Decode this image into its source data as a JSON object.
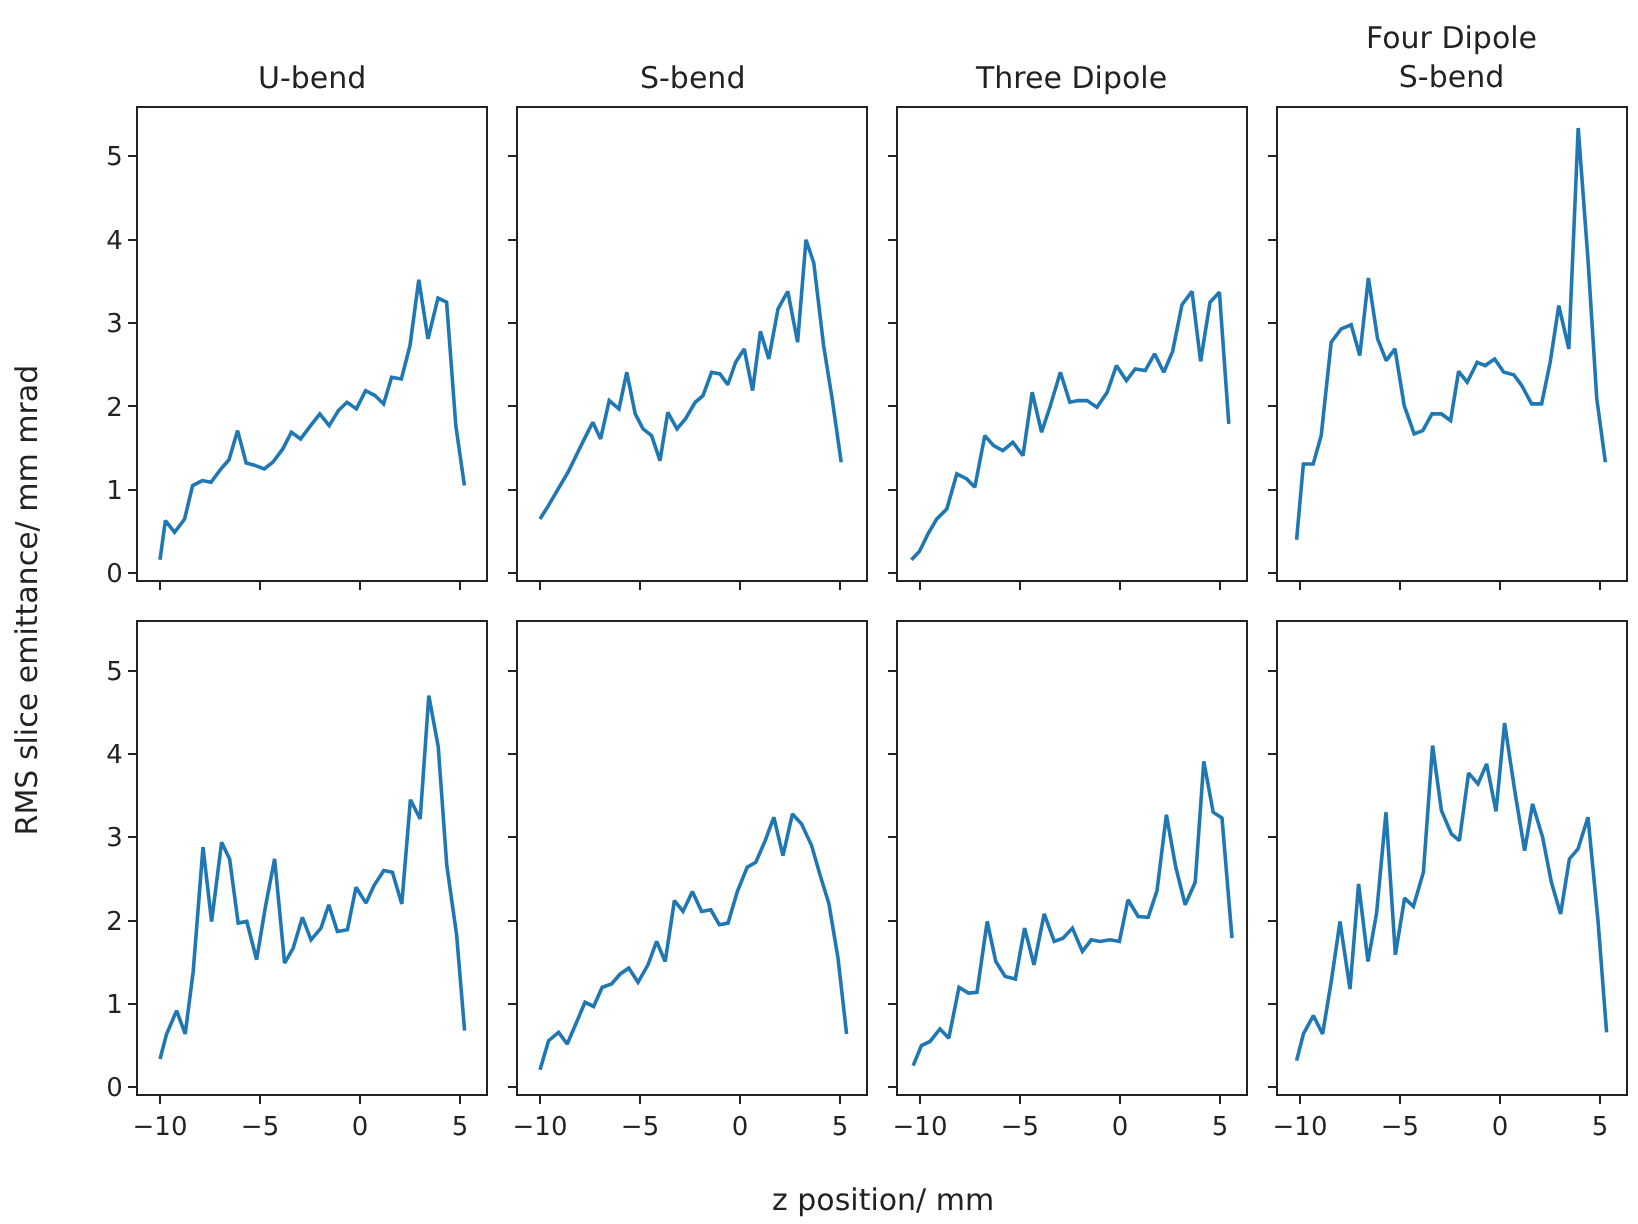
{
  "chart_data": [
    {
      "type": "line",
      "title": "U-bend",
      "ylabel": "RMS slice emittance/ mm mrad",
      "xlim": [
        -11.1,
        6.3
      ],
      "ylim": [
        -0.08,
        5.58
      ],
      "xticks": [
        -10,
        -5,
        0,
        5
      ],
      "yticks": [
        0,
        1,
        2,
        3,
        4,
        5
      ],
      "tick_labels": "y",
      "grid": false,
      "series": [
        {
          "color": "#1f77b4",
          "x": [
            -10,
            -9.73,
            -9.27,
            -8.77,
            -8.37,
            -7.88,
            -7.45,
            -6.95,
            -6.55,
            -6.12,
            -5.69,
            -5.22,
            -4.79,
            -4.36,
            -3.86,
            -3.43,
            -2.97,
            -2.47,
            -2.01,
            -1.54,
            -1.08,
            -0.65,
            -0.18,
            0.28,
            0.75,
            1.18,
            1.58,
            2.07,
            2.5,
            2.94,
            3.4,
            3.9,
            4.33,
            4.79,
            5.22
          ],
          "values": [
            0.16,
            0.63,
            0.49,
            0.65,
            1.05,
            1.11,
            1.09,
            1.25,
            1.36,
            1.71,
            1.32,
            1.29,
            1.25,
            1.33,
            1.49,
            1.69,
            1.61,
            1.77,
            1.91,
            1.77,
            1.95,
            2.05,
            1.97,
            2.19,
            2.13,
            2.03,
            2.35,
            2.33,
            2.73,
            3.52,
            2.81,
            3.3,
            3.25,
            1.77,
            1.05
          ]
        }
      ]
    },
    {
      "type": "line",
      "title": "S-bend",
      "xlim": [
        -11.1,
        6.3
      ],
      "ylim": [
        -0.08,
        5.58
      ],
      "xticks": [
        -10,
        -5,
        0,
        5
      ],
      "yticks": [
        0,
        1,
        2,
        3,
        4,
        5
      ],
      "tick_labels": false,
      "grid": false,
      "series": [
        {
          "color": "#1f77b4",
          "x": [
            -10,
            -9.58,
            -9.09,
            -8.6,
            -8.11,
            -7.78,
            -7.36,
            -6.97,
            -6.54,
            -6.05,
            -5.66,
            -5.24,
            -4.85,
            -4.42,
            -4.0,
            -3.61,
            -3.15,
            -2.73,
            -2.24,
            -1.85,
            -1.42,
            -1.0,
            -0.61,
            -0.22,
            0.21,
            0.63,
            1.02,
            1.44,
            1.9,
            2.39,
            2.88,
            3.3,
            3.69,
            4.18,
            4.61,
            5.06
          ],
          "values": [
            0.65,
            0.81,
            1.01,
            1.21,
            1.45,
            1.61,
            1.81,
            1.61,
            2.07,
            1.97,
            2.41,
            1.91,
            1.73,
            1.65,
            1.35,
            1.93,
            1.73,
            1.85,
            2.05,
            2.13,
            2.41,
            2.39,
            2.26,
            2.53,
            2.69,
            2.19,
            2.9,
            2.57,
            3.17,
            3.38,
            2.77,
            4.0,
            3.72,
            2.73,
            2.09,
            1.33
          ]
        }
      ]
    },
    {
      "type": "line",
      "title": "Three Dipole",
      "xlim": [
        -11.1,
        6.3
      ],
      "ylim": [
        -0.08,
        5.58
      ],
      "xticks": [
        -10,
        -5,
        0,
        5
      ],
      "yticks": [
        0,
        1,
        2,
        3,
        4,
        5
      ],
      "tick_labels": false,
      "grid": false,
      "series": [
        {
          "color": "#1f77b4",
          "x": [
            -10.43,
            -10.03,
            -9.6,
            -9.16,
            -8.66,
            -8.16,
            -7.66,
            -7.26,
            -6.76,
            -6.32,
            -5.86,
            -5.36,
            -4.85,
            -4.39,
            -3.92,
            -3.48,
            -2.98,
            -2.51,
            -2.08,
            -1.65,
            -1.15,
            -0.64,
            -0.18,
            0.32,
            0.76,
            1.26,
            1.73,
            2.19,
            2.63,
            3.1,
            3.6,
            4.03,
            4.5,
            4.97,
            5.44
          ],
          "values": [
            0.16,
            0.26,
            0.47,
            0.65,
            0.77,
            1.19,
            1.13,
            1.03,
            1.65,
            1.53,
            1.47,
            1.57,
            1.41,
            2.17,
            1.69,
            2.01,
            2.41,
            2.05,
            2.07,
            2.07,
            1.99,
            2.17,
            2.49,
            2.31,
            2.45,
            2.43,
            2.63,
            2.41,
            2.66,
            3.22,
            3.38,
            2.54,
            3.25,
            3.37,
            1.79
          ]
        }
      ]
    },
    {
      "type": "line",
      "title": "Four Dipole\nS-bend",
      "xlim": [
        -11.1,
        6.3
      ],
      "ylim": [
        -0.08,
        5.58
      ],
      "xticks": [
        -10,
        -5,
        0,
        5
      ],
      "yticks": [
        0,
        1,
        2,
        3,
        4,
        5
      ],
      "tick_labels": false,
      "grid": false,
      "series": [
        {
          "color": "#1f77b4",
          "x": [
            -10.17,
            -9.83,
            -9.34,
            -8.94,
            -8.44,
            -7.94,
            -7.44,
            -7.01,
            -6.58,
            -6.12,
            -5.69,
            -5.25,
            -4.79,
            -4.29,
            -3.86,
            -3.4,
            -2.93,
            -2.47,
            -2.07,
            -1.64,
            -1.14,
            -0.74,
            -0.27,
            0.19,
            0.69,
            1.09,
            1.58,
            2.08,
            2.51,
            2.94,
            3.44,
            3.91,
            4.4,
            4.84,
            5.27
          ],
          "values": [
            0.4,
            1.31,
            1.31,
            1.65,
            2.77,
            2.93,
            2.98,
            2.61,
            3.54,
            2.81,
            2.55,
            2.69,
            2.01,
            1.67,
            1.71,
            1.91,
            1.91,
            1.83,
            2.42,
            2.29,
            2.53,
            2.49,
            2.57,
            2.41,
            2.38,
            2.25,
            2.03,
            2.03,
            2.53,
            3.21,
            2.69,
            5.34,
            3.76,
            2.09,
            1.33
          ]
        }
      ]
    },
    {
      "type": "line",
      "xlim": [
        -11.1,
        6.3
      ],
      "ylim": [
        -0.08,
        5.58
      ],
      "xticks": [
        -10,
        -5,
        0,
        5
      ],
      "yticks": [
        0,
        1,
        2,
        3,
        4,
        5
      ],
      "grid": false,
      "series": [
        {
          "color": "#1f77b4",
          "x": [
            -10,
            -9.67,
            -9.17,
            -8.74,
            -8.34,
            -7.85,
            -7.42,
            -6.92,
            -6.52,
            -6.09,
            -5.66,
            -5.17,
            -4.74,
            -4.27,
            -3.77,
            -3.34,
            -2.88,
            -2.45,
            -1.95,
            -1.56,
            -1.13,
            -0.63,
            -0.2,
            0.3,
            0.7,
            1.19,
            1.62,
            2.09,
            2.52,
            3.01,
            3.44,
            3.91,
            4.34,
            4.83,
            5.23
          ],
          "values": [
            0.34,
            0.64,
            0.92,
            0.64,
            1.39,
            2.88,
            1.99,
            2.94,
            2.74,
            1.97,
            1.99,
            1.53,
            2.15,
            2.74,
            1.49,
            1.67,
            2.04,
            1.77,
            1.91,
            2.19,
            1.87,
            1.89,
            2.4,
            2.21,
            2.42,
            2.6,
            2.58,
            2.2,
            3.45,
            3.22,
            4.7,
            4.09,
            2.66,
            1.83,
            0.68
          ]
        }
      ]
    },
    {
      "type": "line",
      "xlabel": "z position/ mm",
      "xlim": [
        -11.1,
        6.3
      ],
      "ylim": [
        -0.08,
        5.58
      ],
      "xticks": [
        -10,
        -5,
        0,
        5
      ],
      "yticks": [
        0,
        1,
        2,
        3,
        4,
        5
      ],
      "tick_labels": "x",
      "grid": false,
      "series": [
        {
          "color": "#1f77b4",
          "x": [
            -10,
            -9.57,
            -9.07,
            -8.64,
            -8.21,
            -7.75,
            -7.32,
            -6.89,
            -6.42,
            -5.99,
            -5.56,
            -5.1,
            -4.6,
            -4.17,
            -3.74,
            -3.28,
            -2.85,
            -2.38,
            -1.92,
            -1.46,
            -1.03,
            -0.6,
            -0.13,
            0.36,
            0.79,
            1.26,
            1.69,
            2.15,
            2.62,
            3.08,
            3.58,
            4.01,
            4.44,
            4.9,
            5.33
          ],
          "values": [
            0.21,
            0.56,
            0.66,
            0.52,
            0.76,
            1.02,
            0.97,
            1.2,
            1.24,
            1.36,
            1.43,
            1.26,
            1.47,
            1.75,
            1.51,
            2.24,
            2.11,
            2.35,
            2.11,
            2.13,
            1.95,
            1.97,
            2.35,
            2.64,
            2.7,
            2.96,
            3.24,
            2.78,
            3.28,
            3.16,
            2.9,
            2.54,
            2.21,
            1.55,
            0.64
          ]
        }
      ]
    },
    {
      "type": "line",
      "xlim": [
        -11.1,
        6.3
      ],
      "ylim": [
        -0.08,
        5.58
      ],
      "xticks": [
        -10,
        -5,
        0,
        5
      ],
      "yticks": [
        0,
        1,
        2,
        3,
        4,
        5
      ],
      "tick_labels": "x",
      "grid": false,
      "series": [
        {
          "color": "#1f77b4",
          "x": [
            -10.34,
            -9.93,
            -9.5,
            -9.0,
            -8.56,
            -8.05,
            -7.58,
            -7.15,
            -6.64,
            -6.21,
            -5.74,
            -5.23,
            -4.77,
            -4.3,
            -3.79,
            -3.29,
            -2.85,
            -2.38,
            -1.88,
            -1.44,
            -1.0,
            -0.5,
            -0.03,
            0.4,
            0.91,
            1.41,
            1.85,
            2.32,
            2.79,
            3.26,
            3.76,
            4.19,
            4.66,
            5.1,
            5.6
          ],
          "values": [
            0.26,
            0.5,
            0.55,
            0.7,
            0.59,
            1.2,
            1.13,
            1.14,
            1.99,
            1.51,
            1.33,
            1.3,
            1.91,
            1.47,
            2.08,
            1.75,
            1.79,
            1.91,
            1.63,
            1.77,
            1.75,
            1.77,
            1.75,
            2.25,
            2.05,
            2.04,
            2.36,
            3.27,
            2.64,
            2.19,
            2.46,
            3.91,
            3.3,
            3.23,
            1.79
          ]
        }
      ]
    },
    {
      "type": "line",
      "xlim": [
        -11.1,
        6.3
      ],
      "ylim": [
        -0.08,
        5.58
      ],
      "xticks": [
        -10,
        -5,
        0,
        5
      ],
      "yticks": [
        0,
        1,
        2,
        3,
        4,
        5
      ],
      "tick_labels": "x",
      "grid": false,
      "series": [
        {
          "color": "#1f77b4",
          "x": [
            -10.17,
            -9.83,
            -9.33,
            -8.87,
            -8.43,
            -8.0,
            -7.5,
            -7.07,
            -6.6,
            -6.17,
            -5.7,
            -5.23,
            -4.77,
            -4.33,
            -3.83,
            -3.37,
            -2.93,
            -2.43,
            -2.03,
            -1.57,
            -1.1,
            -0.67,
            -0.2,
            0.23,
            0.73,
            1.23,
            1.63,
            2.13,
            2.57,
            3.03,
            3.47,
            3.9,
            4.4,
            4.9,
            5.33
          ],
          "values": [
            0.32,
            0.64,
            0.86,
            0.64,
            1.28,
            1.99,
            1.18,
            2.44,
            1.51,
            2.09,
            3.3,
            1.59,
            2.27,
            2.17,
            2.58,
            4.1,
            3.32,
            3.04,
            2.96,
            3.77,
            3.64,
            3.88,
            3.31,
            4.37,
            3.57,
            2.84,
            3.4,
            3.0,
            2.46,
            2.08,
            2.74,
            2.86,
            3.24,
            2.0,
            0.66
          ]
        }
      ]
    }
  ]
}
